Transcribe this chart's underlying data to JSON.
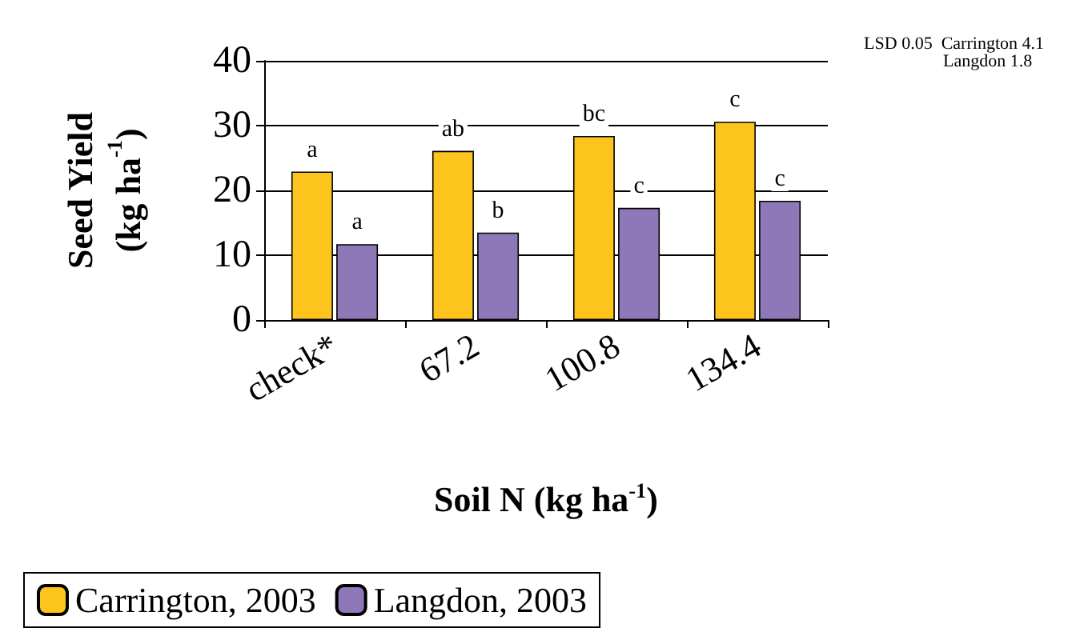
{
  "chart_data": {
    "type": "bar",
    "xlabel": "Soil N (kg ha$^{-1}$)",
    "ylabel": "Seed Yield\n(kg ha$^{-1}$)",
    "categories": [
      "check*",
      "67.2",
      "100.8",
      "134.4"
    ],
    "series": [
      {
        "name": "Carrington, 2003",
        "color": "#fcc41c",
        "values": [
          22.9,
          26.1,
          28.4,
          30.6
        ],
        "value_labels": [
          "a",
          "ab",
          "bc",
          "c"
        ]
      },
      {
        "name": "Langdon, 2003",
        "color": "#8f78b8",
        "values": [
          11.7,
          13.5,
          17.3,
          18.4
        ],
        "value_labels": [
          "a",
          "b",
          "c",
          "c"
        ]
      }
    ],
    "ylim": [
      0,
      40
    ],
    "yticks": [
      0,
      10,
      20,
      30,
      40
    ],
    "grid": "y",
    "legend": "bottom",
    "annotations": [
      "LSD 0.05  Carrington 4.1\n                  Langdon 1.8"
    ]
  }
}
